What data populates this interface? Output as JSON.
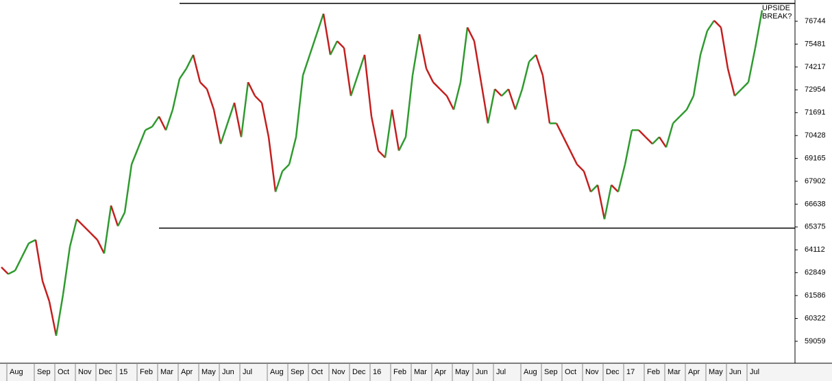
{
  "chart_data": {
    "type": "line",
    "annotation": [
      "UPSIDE",
      "BREAK?"
    ],
    "annotation_color": "#1010d0",
    "up_color": "#2e9a2e",
    "down_color": "#c41e1e",
    "categories": [
      null,
      "Aug",
      null,
      null,
      null,
      "Sep",
      null,
      null,
      "Oct",
      null,
      null,
      "Nov",
      null,
      null,
      "Dec",
      null,
      null,
      "15",
      null,
      null,
      "Feb",
      null,
      null,
      "Mar",
      null,
      null,
      "Apr",
      null,
      null,
      "May",
      null,
      null,
      "Jun",
      null,
      null,
      "Jul",
      null,
      null,
      null,
      "Aug",
      null,
      null,
      "Sep",
      null,
      null,
      "Oct",
      null,
      null,
      "Nov",
      null,
      null,
      "Dec",
      null,
      null,
      "16",
      null,
      null,
      "Feb",
      null,
      null,
      "Mar",
      null,
      null,
      "Apr",
      null,
      null,
      "May",
      null,
      null,
      "Jun",
      null,
      null,
      "Jul",
      null,
      null,
      null,
      "Aug",
      null,
      null,
      "Sep",
      null,
      null,
      "Oct",
      null,
      null,
      "Nov",
      null,
      null,
      "Dec",
      null,
      null,
      "17",
      null,
      null,
      "Feb",
      null,
      null,
      "Mar",
      null,
      null,
      "Apr",
      null,
      null,
      "May",
      null,
      null,
      "Jun",
      null,
      null,
      "Jul",
      null,
      null
    ],
    "values": [
      63153,
      62774,
      62963,
      63721,
      64478,
      64667,
      62395,
      61260,
      59367,
      61638,
      64288,
      65803,
      65425,
      65046,
      64667,
      63910,
      66560,
      65425,
      66181,
      68832,
      69778,
      70725,
      70914,
      71482,
      70725,
      71860,
      73564,
      74132,
      74889,
      73375,
      72996,
      71860,
      69967,
      71103,
      72239,
      70346,
      73375,
      72618,
      72239,
      70346,
      67317,
      68453,
      68832,
      70346,
      73753,
      74889,
      76025,
      77161,
      74889,
      75646,
      75268,
      72618,
      73753,
      74889,
      71482,
      69589,
      69210,
      71860,
      69589,
      70346,
      73753,
      76025,
      74132,
      73375,
      72996,
      72618,
      71860,
      73375,
      76404,
      75646,
      73375,
      71103,
      72996,
      72618,
      72996,
      71860,
      72996,
      74511,
      74889,
      73753,
      71103,
      71103,
      70346,
      69589,
      68832,
      68453,
      67317,
      67696,
      65803,
      67696,
      67317,
      68832,
      70725,
      70725,
      70346,
      69967,
      70346,
      69778,
      71103,
      71482,
      71860,
      72618,
      74889,
      76214,
      76782,
      76404,
      74132,
      72618,
      72996,
      73375,
      75268,
      77350
    ],
    "reference_lines": [
      {
        "value": 77730,
        "start_index": 26
      },
      {
        "value": 65310,
        "start_index": 23
      }
    ],
    "ylim": [
      57847,
      77918
    ],
    "yticks": [
      59059,
      60322,
      61586,
      62849,
      64112,
      65375,
      66638,
      67902,
      69165,
      70428,
      71691,
      72954,
      74217,
      75481,
      76744
    ]
  }
}
